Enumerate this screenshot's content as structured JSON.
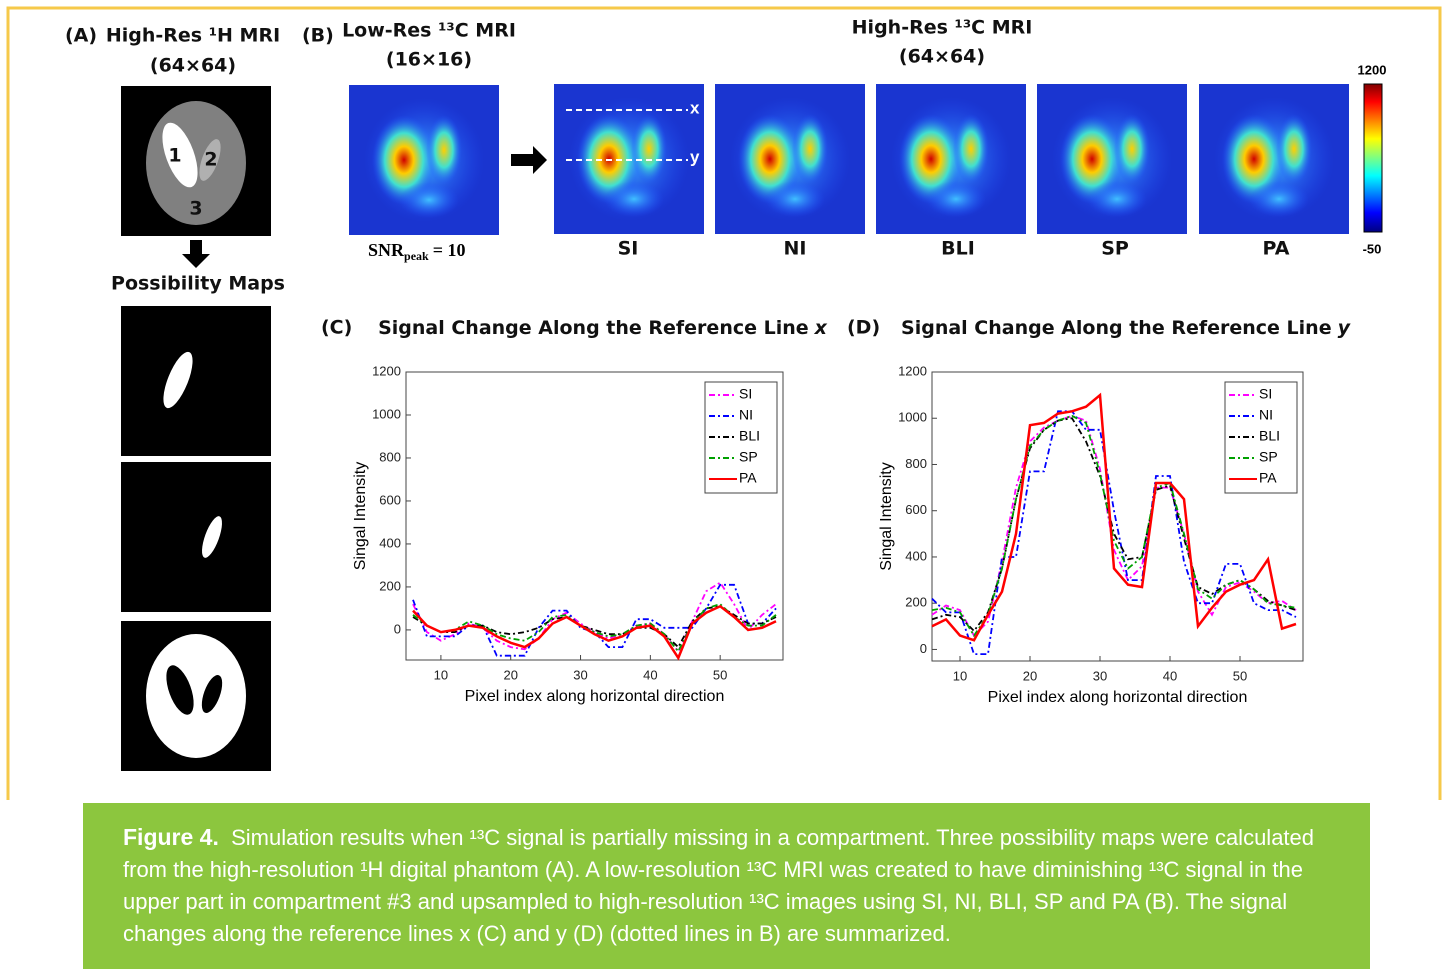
{
  "panel_a": {
    "label": "(A)",
    "title": "High-Res ¹H MRI",
    "size": "(64×64)",
    "regions": [
      "1",
      "2",
      "3"
    ],
    "maps_title": "Possibility Maps"
  },
  "panel_b": {
    "label": "(B)",
    "low_title": "Low-Res ¹³C MRI",
    "low_size": "(16×16)",
    "high_title": "High-Res ¹³C MRI",
    "high_size": "(64×64)",
    "snr_label": "SNR",
    "snr_subscript": "peak",
    "snr_value": "= 10",
    "line_labels": [
      "x",
      "y"
    ],
    "methods": [
      "SI",
      "NI",
      "BLI",
      "SP",
      "PA"
    ],
    "colorbar": {
      "max": 1200,
      "min": -50
    }
  },
  "chart_data": [
    {
      "type": "line",
      "panel": "(C)",
      "title": "Signal Change Along the Reference Line",
      "title_var": "x",
      "xlabel": "Pixel index along horizontal direction",
      "ylabel": "Singal  Intensity",
      "xlim": [
        5,
        59
      ],
      "ylim": [
        -140,
        1200
      ],
      "xticks": [
        10,
        20,
        30,
        40,
        50
      ],
      "yticks": [
        0,
        200,
        400,
        600,
        800,
        1000,
        1200
      ],
      "legend": "upper right",
      "x": [
        6,
        8,
        10,
        12,
        14,
        16,
        18,
        20,
        22,
        24,
        26,
        28,
        30,
        32,
        34,
        36,
        38,
        40,
        42,
        44,
        46,
        48,
        50,
        52,
        54,
        56,
        58
      ],
      "series": [
        {
          "name": "SI",
          "color": "#ff00ff",
          "linestyle": "dashdot",
          "values": [
            120,
            -10,
            -50,
            -20,
            30,
            10,
            -50,
            -80,
            -90,
            -40,
            50,
            80,
            30,
            -10,
            -40,
            -20,
            20,
            30,
            -20,
            -100,
            40,
            180,
            220,
            120,
            0,
            70,
            120
          ]
        },
        {
          "name": "NI",
          "color": "#0000ff",
          "linestyle": "dashdot",
          "values": [
            140,
            -30,
            -30,
            -30,
            20,
            20,
            -120,
            -120,
            -120,
            10,
            90,
            90,
            10,
            -10,
            -80,
            -80,
            50,
            50,
            10,
            10,
            10,
            100,
            210,
            210,
            30,
            30,
            100
          ]
        },
        {
          "name": "BLI",
          "color": "#000000",
          "linestyle": "dashdot",
          "values": [
            60,
            20,
            -10,
            -10,
            20,
            20,
            -10,
            -20,
            -10,
            10,
            50,
            60,
            20,
            0,
            -20,
            -20,
            10,
            10,
            -20,
            -80,
            40,
            100,
            110,
            70,
            30,
            30,
            60
          ]
        },
        {
          "name": "SP",
          "color": "#00a000",
          "linestyle": "dashdot",
          "values": [
            70,
            20,
            -10,
            0,
            40,
            20,
            -20,
            -40,
            -50,
            -10,
            60,
            70,
            20,
            -10,
            -30,
            -20,
            20,
            30,
            -20,
            -100,
            30,
            100,
            120,
            60,
            20,
            20,
            70
          ]
        },
        {
          "name": "PA",
          "color": "#ff0000",
          "linestyle": "solid",
          "values": [
            90,
            20,
            -10,
            0,
            20,
            10,
            -30,
            -60,
            -80,
            -40,
            30,
            60,
            20,
            -20,
            -50,
            -30,
            10,
            20,
            -30,
            -130,
            30,
            80,
            110,
            60,
            0,
            10,
            40
          ]
        }
      ]
    },
    {
      "type": "line",
      "panel": "(D)",
      "title": "Signal Change Along the Reference Line",
      "title_var": "y",
      "xlabel": "Pixel index along horizontal direction",
      "ylabel": "Singal  Intensity",
      "xlim": [
        6,
        59
      ],
      "ylim": [
        -50,
        1200
      ],
      "xticks": [
        10,
        20,
        30,
        40,
        50
      ],
      "yticks": [
        0,
        200,
        400,
        600,
        800,
        1000,
        1200
      ],
      "legend": "upper right",
      "x": [
        6,
        8,
        10,
        12,
        14,
        16,
        18,
        20,
        22,
        24,
        26,
        28,
        30,
        32,
        34,
        36,
        38,
        40,
        42,
        44,
        46,
        48,
        50,
        52,
        54,
        56,
        58
      ],
      "series": [
        {
          "name": "SI",
          "color": "#ff00ff",
          "linestyle": "dashdot",
          "values": [
            150,
            190,
            170,
            60,
            120,
            380,
            700,
            900,
            960,
            990,
            1010,
            990,
            780,
            430,
            300,
            360,
            700,
            700,
            500,
            250,
            150,
            270,
            290,
            250,
            200,
            210,
            170
          ]
        },
        {
          "name": "NI",
          "color": "#0000ff",
          "linestyle": "dashdot",
          "values": [
            220,
            160,
            160,
            -20,
            -20,
            400,
            400,
            770,
            770,
            1030,
            1030,
            950,
            950,
            600,
            300,
            300,
            750,
            750,
            380,
            200,
            200,
            370,
            370,
            200,
            170,
            170,
            140
          ]
        },
        {
          "name": "BLI",
          "color": "#000000",
          "linestyle": "dashdot",
          "values": [
            130,
            150,
            140,
            80,
            160,
            350,
            650,
            870,
            950,
            990,
            1000,
            900,
            750,
            500,
            390,
            400,
            690,
            710,
            480,
            270,
            240,
            280,
            300,
            260,
            210,
            190,
            170
          ]
        },
        {
          "name": "SP",
          "color": "#00a000",
          "linestyle": "dashdot",
          "values": [
            170,
            180,
            160,
            60,
            150,
            350,
            650,
            880,
            950,
            990,
            1010,
            980,
            760,
            470,
            350,
            400,
            700,
            720,
            500,
            260,
            220,
            280,
            300,
            260,
            200,
            190,
            180
          ]
        },
        {
          "name": "PA",
          "color": "#ff0000",
          "linestyle": "solid",
          "values": [
            100,
            130,
            60,
            40,
            150,
            250,
            500,
            970,
            980,
            1020,
            1030,
            1050,
            1100,
            350,
            280,
            270,
            720,
            720,
            650,
            100,
            180,
            250,
            280,
            300,
            390,
            90,
            110
          ]
        }
      ]
    }
  ],
  "caption": {
    "label": "Figure 4.",
    "text": "Simulation results when ¹³C signal is partially missing in a compartment. Three possibility maps were calculated from the high-resolution ¹H digital phantom (A). A low-resolution ¹³C MRI was created to have diminishing ¹³C signal in the upper part in compartment #3 and upsampled to high-resolution ¹³C images using SI, NI, BLI, SP and PA (B). The signal changes along the reference lines x (C) and y (D) (dotted lines in B) are summarized."
  }
}
